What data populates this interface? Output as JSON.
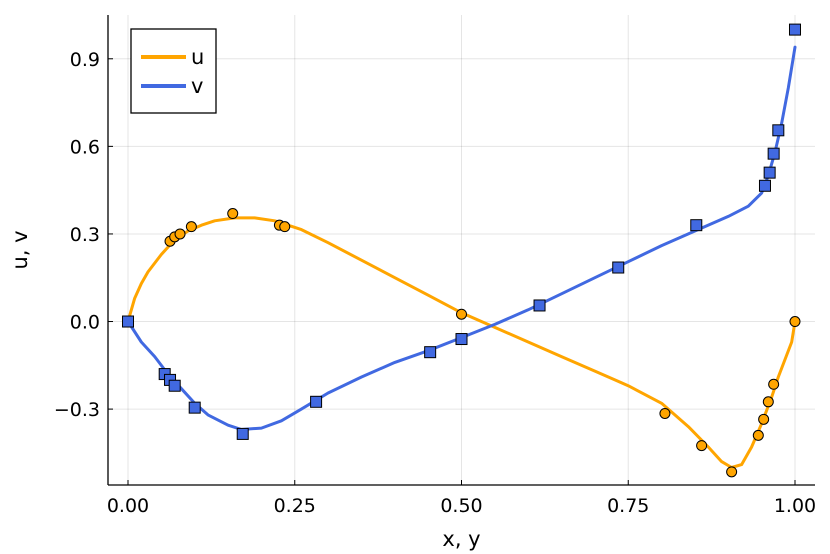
{
  "chart_data": {
    "type": "line",
    "xlabel": "x, y",
    "ylabel": "u, v",
    "xlim": [
      -0.03,
      1.03
    ],
    "ylim": [
      -0.56,
      1.05
    ],
    "xticks": [
      "0.00",
      "0.25",
      "0.50",
      "0.75",
      "1.00"
    ],
    "xtick_values": [
      0,
      0.25,
      0.5,
      0.75,
      1.0
    ],
    "yticks": [
      "−0.3",
      "0.0",
      "0.3",
      "0.6",
      "0.9"
    ],
    "ytick_values": [
      -0.3,
      0,
      0.3,
      0.6,
      0.9
    ],
    "grid": true,
    "legend_position": "top-left",
    "series": [
      {
        "name": "u",
        "color": "#FFA500",
        "line": {
          "x": [
            0,
            0.01,
            0.02,
            0.03,
            0.05,
            0.07,
            0.09,
            0.11,
            0.13,
            0.16,
            0.19,
            0.22,
            0.26,
            0.3,
            0.35,
            0.4,
            0.45,
            0.5,
            0.55,
            0.6,
            0.65,
            0.7,
            0.75,
            0.8,
            0.84,
            0.87,
            0.89,
            0.905,
            0.92,
            0.935,
            0.95,
            0.965,
            0.975,
            0.985,
            0.995,
            1.0
          ],
          "y": [
            0,
            0.08,
            0.13,
            0.17,
            0.23,
            0.28,
            0.31,
            0.33,
            0.345,
            0.355,
            0.355,
            0.345,
            0.315,
            0.27,
            0.21,
            0.15,
            0.09,
            0.03,
            -0.02,
            -0.07,
            -0.12,
            -0.17,
            -0.22,
            -0.28,
            -0.36,
            -0.43,
            -0.48,
            -0.5,
            -0.49,
            -0.43,
            -0.35,
            -0.26,
            -0.19,
            -0.13,
            -0.07,
            0
          ]
        },
        "points": {
          "x": [
            0.063,
            0.07,
            0.078,
            0.095,
            0.157,
            0.227,
            0.235,
            0.5,
            0.805,
            0.86,
            0.905,
            0.945,
            0.953,
            0.96,
            0.968,
            1.0
          ],
          "y": [
            0.275,
            0.29,
            0.3,
            0.325,
            0.37,
            0.33,
            0.325,
            0.025,
            -0.315,
            -0.425,
            -0.515,
            -0.39,
            -0.335,
            -0.275,
            -0.215,
            0
          ]
        }
      },
      {
        "name": "v",
        "color": "#4169E1",
        "line": {
          "x": [
            0,
            0.02,
            0.04,
            0.06,
            0.08,
            0.1,
            0.12,
            0.15,
            0.17,
            0.2,
            0.23,
            0.26,
            0.3,
            0.35,
            0.4,
            0.45,
            0.5,
            0.55,
            0.6,
            0.65,
            0.7,
            0.75,
            0.8,
            0.85,
            0.9,
            0.93,
            0.95,
            0.96,
            0.97,
            0.98,
            0.99,
            1.0
          ],
          "y": [
            0,
            -0.07,
            -0.12,
            -0.18,
            -0.23,
            -0.28,
            -0.32,
            -0.355,
            -0.37,
            -0.365,
            -0.34,
            -0.3,
            -0.245,
            -0.19,
            -0.14,
            -0.1,
            -0.055,
            -0.01,
            0.04,
            0.095,
            0.15,
            0.205,
            0.26,
            0.31,
            0.36,
            0.395,
            0.44,
            0.5,
            0.58,
            0.68,
            0.8,
            0.94
          ]
        },
        "points": {
          "x": [
            0,
            0.055,
            0.063,
            0.07,
            0.1,
            0.172,
            0.282,
            0.453,
            0.5,
            0.617,
            0.735,
            0.852,
            0.955,
            0.962,
            0.968,
            0.975,
            1.0
          ],
          "y": [
            0,
            -0.18,
            -0.2,
            -0.22,
            -0.295,
            -0.385,
            -0.275,
            -0.105,
            -0.06,
            0.055,
            0.185,
            0.33,
            0.465,
            0.51,
            0.575,
            0.655,
            1.0
          ]
        }
      }
    ]
  }
}
